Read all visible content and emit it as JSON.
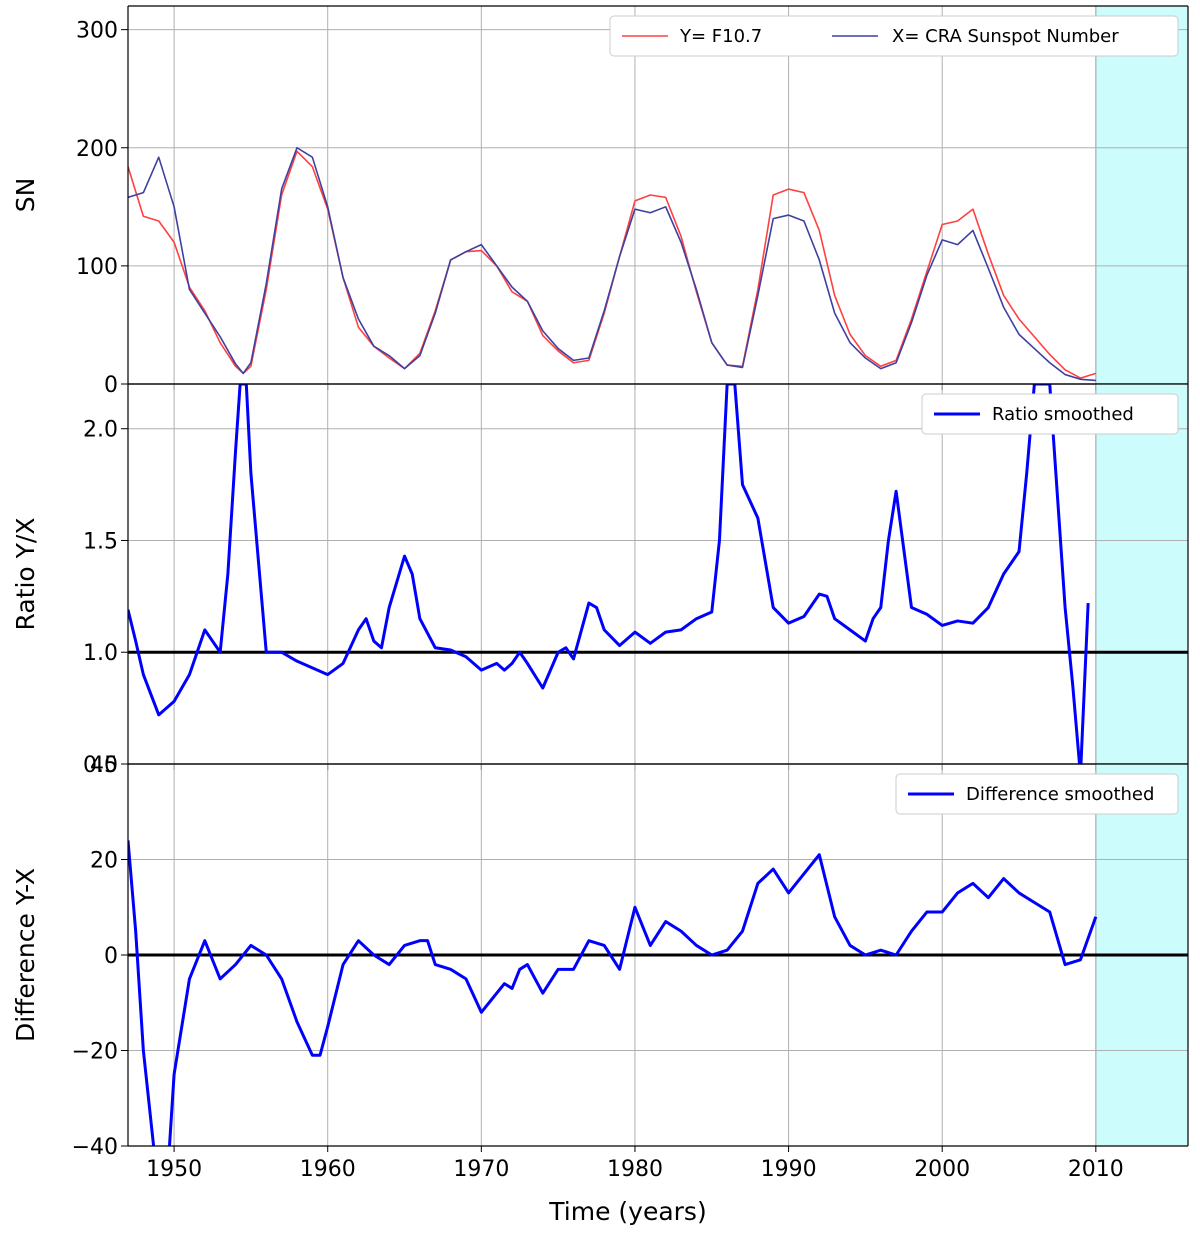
{
  "chart_data": [
    {
      "type": "line",
      "panel": "top",
      "ylabel": "SN",
      "xlim": [
        1947,
        2016
      ],
      "ylim": [
        0,
        320
      ],
      "yticks": [
        0,
        100,
        200,
        300
      ],
      "grid": true,
      "legend": "top-right",
      "highlight_span": [
        2010,
        2016
      ],
      "series": [
        {
          "name": "Y= F10.7",
          "color": "#ff4040",
          "x": [
            1947,
            1948,
            1949,
            1950,
            1951,
            1952,
            1953,
            1954,
            1954.5,
            1955,
            1956,
            1957,
            1958,
            1959,
            1960,
            1961,
            1962,
            1963,
            1964,
            1965,
            1966,
            1967,
            1968,
            1969,
            1970,
            1971,
            1972,
            1973,
            1974,
            1975,
            1976,
            1977,
            1978,
            1979,
            1980,
            1981,
            1982,
            1983,
            1984,
            1985,
            1986,
            1987,
            1988,
            1989,
            1990,
            1991,
            1992,
            1993,
            1994,
            1995,
            1996,
            1997,
            1998,
            1999,
            2000,
            2001,
            2002,
            2003,
            2004,
            2005,
            2006,
            2007,
            2008,
            2009,
            2010
          ],
          "values": [
            184,
            142,
            138,
            120,
            82,
            62,
            35,
            15,
            9,
            15,
            80,
            160,
            197,
            184,
            148,
            90,
            48,
            32,
            22,
            13,
            26,
            62,
            105,
            112,
            113,
            100,
            78,
            70,
            41,
            28,
            18,
            20,
            60,
            108,
            155,
            160,
            158,
            125,
            78,
            35,
            16,
            15,
            80,
            160,
            165,
            162,
            130,
            75,
            42,
            24,
            15,
            20,
            55,
            95,
            135,
            138,
            148,
            110,
            75,
            55,
            40,
            25,
            12,
            5,
            9
          ]
        },
        {
          "name": "X= CRA Sunspot Number",
          "color": "#4040a0",
          "x": [
            1947,
            1948,
            1949,
            1950,
            1951,
            1952,
            1953,
            1954,
            1954.5,
            1955,
            1956,
            1957,
            1958,
            1959,
            1960,
            1961,
            1962,
            1963,
            1964,
            1965,
            1966,
            1967,
            1968,
            1969,
            1970,
            1971,
            1972,
            1973,
            1974,
            1975,
            1976,
            1977,
            1978,
            1979,
            1980,
            1981,
            1982,
            1983,
            1984,
            1985,
            1986,
            1987,
            1988,
            1989,
            1990,
            1991,
            1992,
            1993,
            1994,
            1995,
            1996,
            1997,
            1998,
            1999,
            2000,
            2001,
            2002,
            2003,
            2004,
            2005,
            2006,
            2007,
            2008,
            2009,
            2010
          ],
          "values": [
            158,
            162,
            192,
            150,
            80,
            60,
            40,
            17,
            9,
            18,
            85,
            165,
            200,
            192,
            150,
            90,
            55,
            32,
            24,
            13,
            24,
            60,
            105,
            112,
            118,
            100,
            82,
            70,
            45,
            30,
            20,
            22,
            62,
            108,
            148,
            145,
            150,
            120,
            80,
            35,
            16,
            14,
            75,
            140,
            143,
            138,
            105,
            60,
            35,
            22,
            13,
            18,
            52,
            92,
            122,
            118,
            130,
            98,
            65,
            42,
            30,
            18,
            8,
            4,
            3
          ]
        }
      ]
    },
    {
      "type": "line",
      "panel": "middle",
      "ylabel": "Ratio Y/X",
      "xlim": [
        1947,
        2016
      ],
      "ylim": [
        0.5,
        2.2
      ],
      "yticks": [
        0.5,
        1.0,
        1.5,
        2.0
      ],
      "ytick_labels": [
        "0.5",
        "1.0",
        "1.5",
        "2.0"
      ],
      "grid": true,
      "legend": "top-right",
      "reference_line": 1.0,
      "highlight_span": [
        2010,
        2016
      ],
      "series": [
        {
          "name": "Ratio smoothed",
          "color": "#0000ff",
          "x": [
            1947,
            1947.5,
            1948,
            1949,
            1950,
            1951,
            1951.5,
            1952,
            1952.5,
            1953,
            1953.5,
            1954,
            1954.3,
            1954.7,
            1955,
            1955.5,
            1956,
            1957,
            1958,
            1959,
            1960,
            1961,
            1962,
            1962.5,
            1963,
            1963.5,
            1964,
            1965,
            1965.5,
            1966,
            1967,
            1968,
            1969,
            1970,
            1971,
            1971.5,
            1972,
            1972.5,
            1973,
            1974,
            1975,
            1975.5,
            1976,
            1977,
            1977.5,
            1978,
            1979,
            1980,
            1981,
            1982,
            1983,
            1984,
            1985,
            1985.5,
            1986,
            1986.5,
            1987,
            1988,
            1989,
            1990,
            1991,
            1992,
            1992.5,
            1993,
            1994,
            1995,
            1995.5,
            1996,
            1996.5,
            1997,
            1998,
            1999,
            2000,
            2001,
            2002,
            2003,
            2004,
            2005,
            2005.5,
            2006,
            2007,
            2008,
            2008.5,
            2009,
            2009.5
          ],
          "values": [
            1.19,
            1.05,
            0.9,
            0.72,
            0.78,
            0.9,
            1.0,
            1.1,
            1.05,
            1.0,
            1.35,
            1.9,
            2.2,
            2.2,
            1.8,
            1.4,
            1.0,
            1.0,
            0.96,
            0.93,
            0.9,
            0.95,
            1.1,
            1.15,
            1.05,
            1.02,
            1.2,
            1.43,
            1.35,
            1.15,
            1.02,
            1.01,
            0.98,
            0.92,
            0.95,
            0.92,
            0.95,
            1.0,
            0.95,
            0.84,
            1.0,
            1.02,
            0.97,
            1.22,
            1.2,
            1.1,
            1.03,
            1.09,
            1.04,
            1.09,
            1.1,
            1.15,
            1.18,
            1.5,
            2.2,
            2.2,
            1.75,
            1.6,
            1.2,
            1.13,
            1.16,
            1.26,
            1.25,
            1.15,
            1.1,
            1.05,
            1.15,
            1.2,
            1.5,
            1.72,
            1.2,
            1.17,
            1.12,
            1.14,
            1.13,
            1.2,
            1.35,
            1.45,
            1.8,
            2.2,
            2.2,
            1.2,
            0.85,
            0.45,
            1.22
          ]
        }
      ]
    },
    {
      "type": "line",
      "panel": "bottom",
      "ylabel": "Difference Y-X",
      "xlabel": "Time (years)",
      "xlim": [
        1947,
        2016
      ],
      "xticks": [
        1950,
        1960,
        1970,
        1980,
        1990,
        2000,
        2010
      ],
      "ylim": [
        -40,
        40
      ],
      "yticks": [
        -40,
        -20,
        0,
        20,
        40
      ],
      "ytick_labels": [
        "−40",
        "−20",
        "0",
        "20",
        "40"
      ],
      "grid": true,
      "legend": "top-right",
      "reference_line": 0,
      "highlight_span": [
        2010,
        2016
      ],
      "series": [
        {
          "name": "Difference smoothed",
          "color": "#0000ff",
          "x": [
            1947,
            1947.5,
            1948,
            1949,
            1949.5,
            1950,
            1951,
            1952,
            1953,
            1954,
            1955,
            1956,
            1957,
            1958,
            1959,
            1959.5,
            1960,
            1961,
            1962,
            1963,
            1964,
            1965,
            1966,
            1966.5,
            1967,
            1968,
            1969,
            1970,
            1971,
            1971.5,
            1972,
            1972.5,
            1973,
            1974,
            1975,
            1976,
            1977,
            1978,
            1979,
            1980,
            1981,
            1982,
            1983,
            1984,
            1985,
            1986,
            1987,
            1988,
            1989,
            1990,
            1991,
            1992,
            1993,
            1994,
            1995,
            1996,
            1997,
            1998,
            1999,
            2000,
            2001,
            2002,
            2003,
            2004,
            2005,
            2006,
            2007,
            2008,
            2009,
            2010
          ],
          "values": [
            24,
            5,
            -20,
            -50,
            -50,
            -25,
            -5,
            3,
            -5,
            -2,
            2,
            0,
            -5,
            -14,
            -21,
            -21,
            -15,
            -2,
            3,
            0,
            -2,
            2,
            3,
            3,
            -2,
            -3,
            -5,
            -12,
            -8,
            -6,
            -7,
            -3,
            -2,
            -8,
            -3,
            -3,
            3,
            2,
            -3,
            10,
            2,
            7,
            5,
            2,
            0,
            1,
            5,
            15,
            18,
            13,
            17,
            21,
            8,
            2,
            0,
            1,
            0,
            5,
            9,
            9,
            13,
            15,
            12,
            16,
            13,
            11,
            9,
            -2,
            -1,
            8
          ]
        }
      ]
    }
  ]
}
